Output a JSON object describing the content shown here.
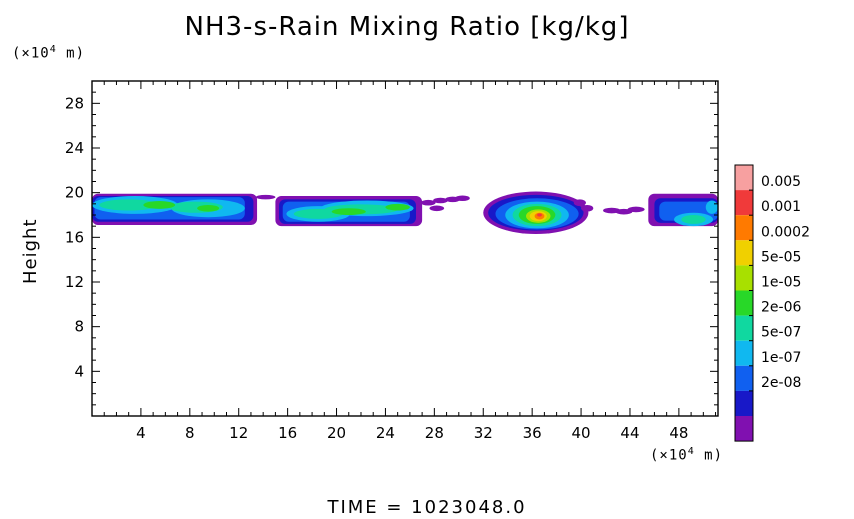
{
  "chart_data": {
    "type": "heatmap",
    "title": "NH3-s-Rain Mixing Ratio [kg/kg]",
    "xlabel": "",
    "ylabel": "Height",
    "x_unit_note": {
      "prefix": "(×10",
      "exp": "4",
      "suffix": " m)"
    },
    "y_unit_note": {
      "prefix": "(×10",
      "exp": "4",
      "suffix": " m)"
    },
    "xlim": [
      0,
      51.2
    ],
    "ylim": [
      0,
      30
    ],
    "x_ticks": [
      4,
      8,
      12,
      16,
      20,
      24,
      28,
      32,
      36,
      40,
      44,
      48
    ],
    "y_ticks": [
      4,
      8,
      12,
      16,
      20,
      24,
      28
    ],
    "colorbar": {
      "labels": [
        "0.005",
        "0.001",
        "0.0002",
        "5e-05",
        "1e-05",
        "2e-06",
        "5e-07",
        "1e-07",
        "2e-08"
      ],
      "colors": [
        "#f7a0a0",
        "#f03a3a",
        "#ff7a00",
        "#f0d000",
        "#a8e000",
        "#28d828",
        "#10d8a0",
        "#10b8f0",
        "#1060f0",
        "#1818c8",
        "#8010b0"
      ]
    },
    "features": [
      {
        "x": [
          0,
          14
        ],
        "y": [
          17,
          20
        ],
        "peak_level": "1e-05",
        "note": "layer band"
      },
      {
        "x": [
          15,
          27
        ],
        "y": [
          17,
          20
        ],
        "peak_level": "1e-05",
        "note": "layer band"
      },
      {
        "x": [
          27,
          31
        ],
        "y": [
          18.5,
          20
        ],
        "peak_level": "2e-08",
        "note": "sparse"
      },
      {
        "x": [
          32,
          40
        ],
        "y": [
          16.5,
          20
        ],
        "peak_level": "0.001",
        "note": "core near x=36"
      },
      {
        "x": [
          42,
          45
        ],
        "y": [
          18,
          19
        ],
        "peak_level": "2e-08",
        "note": "sparse"
      },
      {
        "x": [
          45,
          51.2
        ],
        "y": [
          16.5,
          20
        ],
        "peak_level": "1e-05",
        "note": "edge band"
      }
    ]
  },
  "footer": "TIME  =  1023048.0"
}
